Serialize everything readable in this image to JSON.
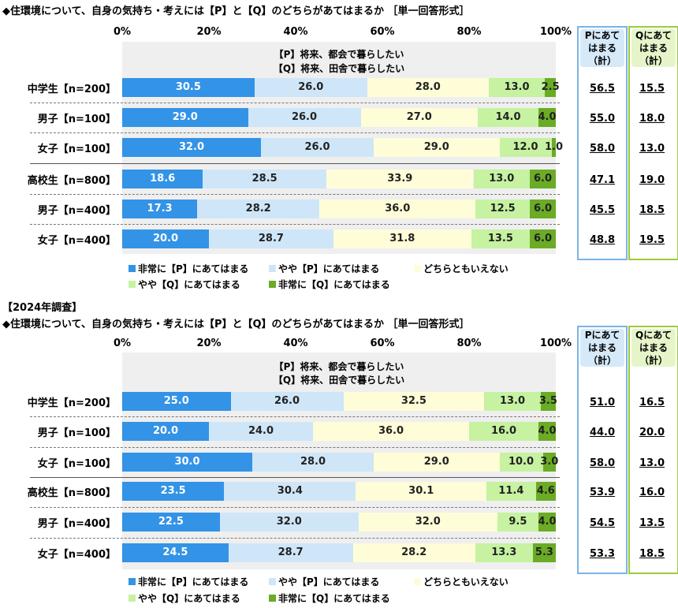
{
  "colors": {
    "very_p": "#3393e6",
    "some_p": "#cfe6f8",
    "neutral": "#fefdd8",
    "some_q": "#c6f2a1",
    "very_q": "#6aac25",
    "p_border": "#7ab4e6",
    "q_border": "#9ccc3c",
    "p_head_bg": "#d5e9f8",
    "q_head_bg": "#e6f5c9"
  },
  "legend": [
    "非常に【P】にあてはまる",
    "やや【P】にあてはまる",
    "どちらともいえない",
    "やや【Q】にあてはまる",
    "非常に【Q】にあてはまる"
  ],
  "sum_headers": {
    "p": "Pにあて\nはまる\n（計）",
    "q": "Qにあて\nはまる\n（計）"
  },
  "chart_data": [
    {
      "type": "bar",
      "orientation": "horizontal-stacked-100",
      "title": "◆住環境について、自身の気持ち・考えには【P】と【Q】のどちらがあてはまるか ［単一回答形式］",
      "subtitle": "",
      "statements": [
        "【P】将来、都会で暮らしたい",
        "【Q】将来、田舎で暮らしたい"
      ],
      "ticks": [
        "0%",
        "20%",
        "40%",
        "60%",
        "80%",
        "100%"
      ],
      "xlim": [
        0,
        100
      ],
      "categories": [
        "中学生【n=200】",
        "男子【n=100】",
        "女子【n=100】",
        "高校生【n=800】",
        "男子【n=400】",
        "女子【n=400】"
      ],
      "series": [
        {
          "name": "非常に【P】にあてはまる",
          "values": [
            30.5,
            29.0,
            32.0,
            18.6,
            17.3,
            20.0
          ]
        },
        {
          "name": "やや【P】にあてはまる",
          "values": [
            26.0,
            26.0,
            26.0,
            28.5,
            28.2,
            28.7
          ]
        },
        {
          "name": "どちらともいえない",
          "values": [
            28.0,
            27.0,
            29.0,
            33.9,
            36.0,
            31.8
          ]
        },
        {
          "name": "やや【Q】にあてはまる",
          "values": [
            13.0,
            14.0,
            12.0,
            13.0,
            12.5,
            13.5
          ]
        },
        {
          "name": "非常に【Q】にあてはまる",
          "values": [
            2.5,
            4.0,
            1.0,
            6.0,
            6.0,
            6.0
          ]
        }
      ],
      "labels": [
        [
          "30.5",
          "29.0",
          "32.0",
          "18.6",
          "17.3",
          "20.0"
        ],
        [
          "26.0",
          "26.0",
          "26.0",
          "28.5",
          "28.2",
          "28.7"
        ],
        [
          "28.0",
          "27.0",
          "29.0",
          "33.9",
          "36.0",
          "31.8"
        ],
        [
          "13.0",
          "14.0",
          "12.0",
          "13.0",
          "12.5",
          "13.5"
        ],
        [
          "2.5",
          "4.0",
          "1.0",
          "6.0",
          "6.0",
          "6.0"
        ]
      ],
      "p_total": [
        "56.5",
        "55.0",
        "58.0",
        "47.1",
        "45.5",
        "48.8"
      ],
      "q_total": [
        "15.5",
        "18.0",
        "13.0",
        "19.0",
        "18.5",
        "19.5"
      ]
    },
    {
      "type": "bar",
      "orientation": "horizontal-stacked-100",
      "title": "◆住環境について、自身の気持ち・考えには【P】と【Q】のどちらがあてはまるか ［単一回答形式］",
      "subtitle": "【2024年調査】",
      "statements": [
        "【P】将来、都会で暮らしたい",
        "【Q】将来、田舎で暮らしたい"
      ],
      "ticks": [
        "0%",
        "20%",
        "40%",
        "60%",
        "80%",
        "100%"
      ],
      "xlim": [
        0,
        100
      ],
      "categories": [
        "中学生【n=200】",
        "男子【n=100】",
        "女子【n=100】",
        "高校生【n=800】",
        "男子【n=400】",
        "女子【n=400】"
      ],
      "series": [
        {
          "name": "非常に【P】にあてはまる",
          "values": [
            25.0,
            20.0,
            30.0,
            23.5,
            22.5,
            24.5
          ]
        },
        {
          "name": "やや【P】にあてはまる",
          "values": [
            26.0,
            24.0,
            28.0,
            30.4,
            32.0,
            28.7
          ]
        },
        {
          "name": "どちらともいえない",
          "values": [
            32.5,
            36.0,
            29.0,
            30.1,
            32.0,
            28.2
          ]
        },
        {
          "name": "やや【Q】にあてはまる",
          "values": [
            13.0,
            16.0,
            10.0,
            11.4,
            9.5,
            13.3
          ]
        },
        {
          "name": "非常に【Q】にあてはまる",
          "values": [
            3.5,
            4.0,
            3.0,
            4.6,
            4.0,
            5.3
          ]
        }
      ],
      "labels": [
        [
          "25.0",
          "20.0",
          "30.0",
          "23.5",
          "22.5",
          "24.5"
        ],
        [
          "26.0",
          "24.0",
          "28.0",
          "30.4",
          "32.0",
          "28.7"
        ],
        [
          "32.5",
          "36.0",
          "29.0",
          "30.1",
          "32.0",
          "28.2"
        ],
        [
          "13.0",
          "16.0",
          "10.0",
          "11.4",
          "9.5",
          "13.3"
        ],
        [
          "3.5",
          "4.0",
          "3.0",
          "4.6",
          "4.0",
          "5.3"
        ]
      ],
      "p_total": [
        "51.0",
        "44.0",
        "58.0",
        "53.9",
        "54.5",
        "53.3"
      ],
      "q_total": [
        "16.5",
        "20.0",
        "13.0",
        "16.0",
        "13.5",
        "18.5"
      ]
    }
  ]
}
